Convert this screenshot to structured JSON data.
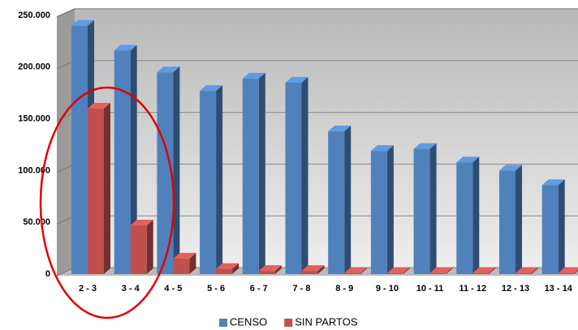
{
  "chart_data": {
    "type": "bar3d",
    "categories": [
      "2 - 3",
      "3 - 4",
      "4 - 5",
      "5 - 6",
      "6 - 7",
      "7 - 8",
      "8 - 9",
      "9 - 10",
      "10 - 11",
      "11 - 12",
      "12 - 13",
      "13 - 14"
    ],
    "series": [
      {
        "name": "CENSO",
        "color": "#4f81bd",
        "values": [
          240000,
          216000,
          195000,
          177000,
          189000,
          185000,
          138000,
          119000,
          121000,
          108000,
          100000,
          86000
        ]
      },
      {
        "name": "SIN PARTOS",
        "color": "#c0504d",
        "values": [
          160000,
          47000,
          15000,
          5000,
          3000,
          3000,
          1000,
          1000,
          1000,
          1000,
          1000,
          1000
        ]
      }
    ],
    "ylim": [
      0,
      250000
    ],
    "yticks": [
      0,
      {
        "value": 50000,
        "label": "50.000"
      },
      {
        "value": 100000,
        "label": "100.000"
      },
      {
        "value": 150000,
        "label": "150.000"
      },
      {
        "value": 200000,
        "label": "200.000"
      },
      {
        "value": 250000,
        "label": "250.000"
      }
    ],
    "grid": true,
    "legend": "bottom"
  }
}
